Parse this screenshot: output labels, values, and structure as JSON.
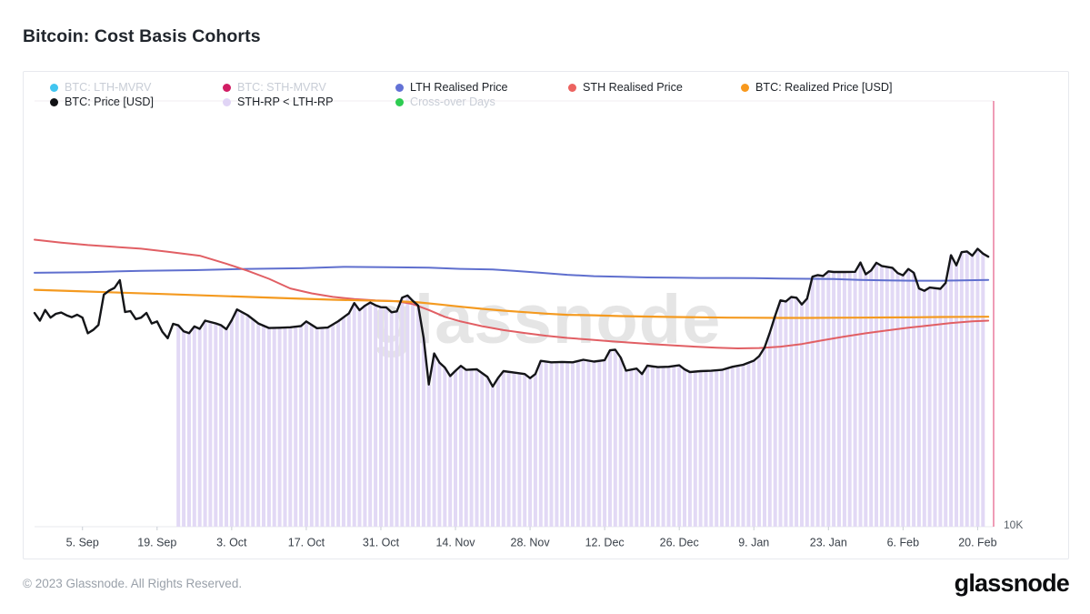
{
  "page": {
    "title": "Bitcoin: Cost Basis Cohorts",
    "footer_copyright": "© 2023 Glassnode. All Rights Reserved.",
    "footer_logo": "glassnode",
    "watermark": "glassnode"
  },
  "colors": {
    "accent_marker": "#e45c86",
    "band": "#e2d9f5",
    "axis_line": "#e7e9ec",
    "tick": "#c9ced6",
    "tick_label": "#394049",
    "y_label": "#596068"
  },
  "legend": {
    "rows": [
      [
        {
          "label": "BTC: LTH-MVRV",
          "color": "#41c5f0",
          "active": false
        },
        {
          "label": "BTC: STH-MVRV",
          "color": "#d11d64",
          "active": false
        },
        {
          "label": "LTH Realised Price",
          "color": "#6372d6",
          "active": true
        },
        {
          "label": "STH Realised Price",
          "color": "#ec6360",
          "active": true
        },
        {
          "label": "BTC: Realized Price [USD]",
          "color": "#f8991d",
          "active": true
        }
      ],
      [
        {
          "label": "BTC: Price [USD]",
          "color": "#101114",
          "active": true
        },
        {
          "label": "STH-RP < LTH-RP",
          "color": "#e0d4f5",
          "active": true
        },
        {
          "label": "Cross-over Days",
          "color": "#2dcc51",
          "active": false
        }
      ]
    ]
  },
  "chart_data": {
    "type": "line",
    "title": "Bitcoin: Cost Basis Cohorts",
    "x_axis": {
      "unit": "days-from-first-point",
      "range_days": [
        0,
        180
      ],
      "ticks": [
        {
          "day": 9,
          "label": "5. Sep"
        },
        {
          "day": 23,
          "label": "19. Sep"
        },
        {
          "day": 37,
          "label": "3. Oct"
        },
        {
          "day": 51,
          "label": "17. Oct"
        },
        {
          "day": 65,
          "label": "31. Oct"
        },
        {
          "day": 79,
          "label": "14. Nov"
        },
        {
          "day": 93,
          "label": "28. Nov"
        },
        {
          "day": 107,
          "label": "12. Dec"
        },
        {
          "day": 121,
          "label": "26. Dec"
        },
        {
          "day": 135,
          "label": "9. Jan"
        },
        {
          "day": 149,
          "label": "23. Jan"
        },
        {
          "day": 163,
          "label": "6. Feb"
        },
        {
          "day": 177,
          "label": "20. Feb"
        }
      ]
    },
    "y_axis": {
      "scale": "log",
      "unit": "USD",
      "ticks": [
        {
          "value": 10000,
          "label": "10K"
        }
      ],
      "visible_range": [
        10000,
        44000
      ]
    },
    "marker_line": {
      "day": 180,
      "color": "#e45c86"
    },
    "band": {
      "name": "STH-RP < LTH-RP",
      "color": "#e2d9f5",
      "from_day": 27,
      "to_day": 178,
      "style": "daily vertical bars from x-axis up to BTC price line"
    },
    "series": [
      {
        "name": "LTH Realised Price",
        "color": "#5f6fce",
        "width": 2,
        "points": [
          [
            0,
            22950
          ],
          [
            10,
            23000
          ],
          [
            20,
            23100
          ],
          [
            30,
            23150
          ],
          [
            40,
            23250
          ],
          [
            50,
            23300
          ],
          [
            58,
            23400
          ],
          [
            66,
            23380
          ],
          [
            74,
            23350
          ],
          [
            80,
            23250
          ],
          [
            86,
            23200
          ],
          [
            90,
            23100
          ],
          [
            95,
            22950
          ],
          [
            100,
            22800
          ],
          [
            105,
            22700
          ],
          [
            110,
            22650
          ],
          [
            115,
            22600
          ],
          [
            120,
            22580
          ],
          [
            125,
            22560
          ],
          [
            130,
            22560
          ],
          [
            135,
            22550
          ],
          [
            140,
            22520
          ],
          [
            145,
            22500
          ],
          [
            150,
            22480
          ],
          [
            155,
            22420
          ],
          [
            160,
            22380
          ],
          [
            165,
            22360
          ],
          [
            170,
            22360
          ],
          [
            174,
            22380
          ],
          [
            179,
            22420
          ]
        ]
      },
      {
        "name": "STH Realised Price",
        "color": "#e15f64",
        "width": 2,
        "points": [
          [
            0,
            25600
          ],
          [
            5,
            25350
          ],
          [
            10,
            25150
          ],
          [
            15,
            25000
          ],
          [
            20,
            24850
          ],
          [
            25,
            24600
          ],
          [
            31,
            24280
          ],
          [
            36,
            23650
          ],
          [
            40,
            23100
          ],
          [
            44,
            22500
          ],
          [
            48,
            21800
          ],
          [
            52,
            21450
          ],
          [
            56,
            21200
          ],
          [
            60,
            21050
          ],
          [
            64,
            20950
          ],
          [
            68,
            20900
          ],
          [
            71,
            20700
          ],
          [
            74,
            20300
          ],
          [
            77,
            19850
          ],
          [
            80,
            19550
          ],
          [
            84,
            19250
          ],
          [
            88,
            19000
          ],
          [
            92,
            18820
          ],
          [
            96,
            18650
          ],
          [
            100,
            18520
          ],
          [
            104,
            18420
          ],
          [
            108,
            18320
          ],
          [
            112,
            18230
          ],
          [
            116,
            18140
          ],
          [
            120,
            18060
          ],
          [
            124,
            17990
          ],
          [
            128,
            17930
          ],
          [
            132,
            17890
          ],
          [
            136,
            17910
          ],
          [
            140,
            17990
          ],
          [
            144,
            18150
          ],
          [
            148,
            18380
          ],
          [
            152,
            18600
          ],
          [
            156,
            18800
          ],
          [
            160,
            18980
          ],
          [
            164,
            19150
          ],
          [
            168,
            19300
          ],
          [
            172,
            19450
          ],
          [
            176,
            19560
          ],
          [
            179,
            19600
          ]
        ]
      },
      {
        "name": "BTC: Realized Price [USD]",
        "color": "#f49a20",
        "width": 2.2,
        "points": [
          [
            0,
            21700
          ],
          [
            8,
            21600
          ],
          [
            16,
            21500
          ],
          [
            24,
            21400
          ],
          [
            32,
            21300
          ],
          [
            40,
            21200
          ],
          [
            48,
            21100
          ],
          [
            56,
            21000
          ],
          [
            62,
            20950
          ],
          [
            68,
            20900
          ],
          [
            72,
            20820
          ],
          [
            76,
            20680
          ],
          [
            80,
            20520
          ],
          [
            84,
            20380
          ],
          [
            88,
            20260
          ],
          [
            92,
            20160
          ],
          [
            96,
            20060
          ],
          [
            100,
            19980
          ],
          [
            105,
            19950
          ],
          [
            110,
            19900
          ],
          [
            115,
            19870
          ],
          [
            120,
            19840
          ],
          [
            125,
            19820
          ],
          [
            130,
            19800
          ],
          [
            135,
            19790
          ],
          [
            140,
            19780
          ],
          [
            145,
            19780
          ],
          [
            150,
            19790
          ],
          [
            155,
            19800
          ],
          [
            160,
            19810
          ],
          [
            165,
            19820
          ],
          [
            170,
            19840
          ],
          [
            175,
            19850
          ],
          [
            179,
            19860
          ]
        ]
      },
      {
        "name": "BTC: Price [USD]",
        "color": "#141518",
        "width": 2.4,
        "points": [
          [
            0,
            20100
          ],
          [
            1,
            19600
          ],
          [
            2,
            20300
          ],
          [
            3,
            19800
          ],
          [
            4,
            20050
          ],
          [
            5,
            20130
          ],
          [
            6,
            19950
          ],
          [
            7,
            19830
          ],
          [
            8,
            19990
          ],
          [
            9,
            19800
          ],
          [
            10,
            18800
          ],
          [
            11,
            19010
          ],
          [
            12,
            19330
          ],
          [
            13,
            21360
          ],
          [
            14,
            21650
          ],
          [
            15,
            21840
          ],
          [
            16,
            22400
          ],
          [
            17,
            20170
          ],
          [
            18,
            20230
          ],
          [
            19,
            19700
          ],
          [
            20,
            19800
          ],
          [
            21,
            20110
          ],
          [
            22,
            19420
          ],
          [
            23,
            19550
          ],
          [
            24,
            18890
          ],
          [
            25,
            18500
          ],
          [
            26,
            19400
          ],
          [
            27,
            19300
          ],
          [
            28,
            18920
          ],
          [
            29,
            18810
          ],
          [
            30,
            19230
          ],
          [
            31,
            19080
          ],
          [
            32,
            19600
          ],
          [
            34,
            19430
          ],
          [
            35,
            19310
          ],
          [
            36,
            19060
          ],
          [
            37,
            19630
          ],
          [
            38,
            20340
          ],
          [
            40,
            19960
          ],
          [
            42,
            19420
          ],
          [
            44,
            19130
          ],
          [
            46,
            19150
          ],
          [
            48,
            19180
          ],
          [
            50,
            19260
          ],
          [
            51,
            19550
          ],
          [
            53,
            19120
          ],
          [
            55,
            19160
          ],
          [
            57,
            19570
          ],
          [
            59,
            20080
          ],
          [
            60,
            20770
          ],
          [
            61,
            20290
          ],
          [
            62,
            20590
          ],
          [
            63,
            20810
          ],
          [
            64,
            20620
          ],
          [
            65,
            20490
          ],
          [
            66,
            20480
          ],
          [
            67,
            20150
          ],
          [
            68,
            20210
          ],
          [
            69,
            21150
          ],
          [
            70,
            21300
          ],
          [
            71,
            20920
          ],
          [
            72,
            20600
          ],
          [
            73,
            18550
          ],
          [
            74,
            15880
          ],
          [
            75,
            17590
          ],
          [
            76,
            17070
          ],
          [
            77,
            16800
          ],
          [
            78,
            16330
          ],
          [
            79,
            16620
          ],
          [
            80,
            16890
          ],
          [
            81,
            16670
          ],
          [
            83,
            16700
          ],
          [
            85,
            16280
          ],
          [
            86,
            15780
          ],
          [
            87,
            16230
          ],
          [
            88,
            16600
          ],
          [
            90,
            16520
          ],
          [
            92,
            16440
          ],
          [
            93,
            16220
          ],
          [
            94,
            16440
          ],
          [
            95,
            17170
          ],
          [
            97,
            17090
          ],
          [
            99,
            17110
          ],
          [
            101,
            17090
          ],
          [
            103,
            17230
          ],
          [
            105,
            17130
          ],
          [
            107,
            17210
          ],
          [
            108,
            17780
          ],
          [
            109,
            17810
          ],
          [
            110,
            17360
          ],
          [
            111,
            16630
          ],
          [
            113,
            16740
          ],
          [
            114,
            16440
          ],
          [
            115,
            16900
          ],
          [
            117,
            16820
          ],
          [
            119,
            16840
          ],
          [
            121,
            16920
          ],
          [
            122,
            16700
          ],
          [
            123,
            16550
          ],
          [
            125,
            16600
          ],
          [
            127,
            16620
          ],
          [
            129,
            16670
          ],
          [
            131,
            16840
          ],
          [
            133,
            16950
          ],
          [
            135,
            17180
          ],
          [
            136,
            17440
          ],
          [
            137,
            17940
          ],
          [
            138,
            18850
          ],
          [
            139,
            19930
          ],
          [
            140,
            20960
          ],
          [
            141,
            20880
          ],
          [
            142,
            21190
          ],
          [
            143,
            21140
          ],
          [
            144,
            20680
          ],
          [
            145,
            21080
          ],
          [
            146,
            22660
          ],
          [
            147,
            22780
          ],
          [
            148,
            22710
          ],
          [
            149,
            23060
          ],
          [
            150,
            23010
          ],
          [
            152,
            23010
          ],
          [
            154,
            23030
          ],
          [
            155,
            23740
          ],
          [
            156,
            22840
          ],
          [
            157,
            23130
          ],
          [
            158,
            23720
          ],
          [
            159,
            23470
          ],
          [
            161,
            23330
          ],
          [
            162,
            22930
          ],
          [
            163,
            22760
          ],
          [
            164,
            23240
          ],
          [
            165,
            22960
          ],
          [
            166,
            21800
          ],
          [
            167,
            21630
          ],
          [
            168,
            21860
          ],
          [
            170,
            21770
          ],
          [
            171,
            22200
          ],
          [
            172,
            24320
          ],
          [
            173,
            23520
          ],
          [
            174,
            24570
          ],
          [
            175,
            24630
          ],
          [
            176,
            24280
          ],
          [
            177,
            24840
          ],
          [
            178,
            24450
          ],
          [
            179,
            24200
          ]
        ]
      }
    ]
  }
}
